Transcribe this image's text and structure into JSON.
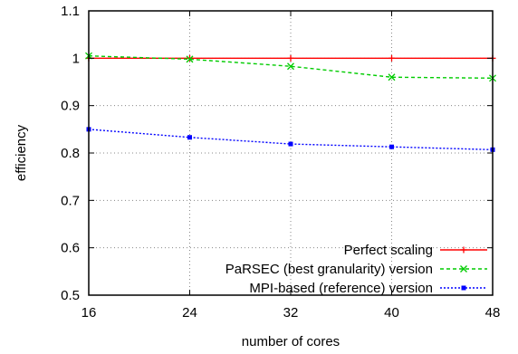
{
  "chart_data": {
    "type": "line",
    "title": "",
    "xlabel": "number of cores",
    "ylabel": "efficiency",
    "xlim": [
      16,
      48
    ],
    "ylim": [
      0.5,
      1.1
    ],
    "x_ticks": [
      "16",
      "24",
      "32",
      "40",
      "48"
    ],
    "y_ticks": [
      "0.5",
      "0.6",
      "0.7",
      "0.8",
      "0.9",
      "1",
      "1.1"
    ],
    "grid": true,
    "grid_style": "dotted",
    "legend_position": "bottom-right",
    "x": [
      16,
      24,
      32,
      40,
      48
    ],
    "series": [
      {
        "name": "Perfect scaling",
        "values": [
          1.0,
          1.0,
          1.0,
          1.0,
          1.0
        ],
        "color": "#ff0000",
        "dash": "solid",
        "marker": "plus"
      },
      {
        "name": "PaRSEC (best granularity) version",
        "values": [
          1.005,
          0.998,
          0.983,
          0.96,
          0.958
        ],
        "color": "#00cc00",
        "dash": "dashed",
        "marker": "cross"
      },
      {
        "name": "MPI-based (reference) version",
        "values": [
          0.85,
          0.833,
          0.819,
          0.813,
          0.807
        ],
        "color": "#0000ff",
        "dash": "dotted",
        "marker": "square"
      }
    ]
  }
}
